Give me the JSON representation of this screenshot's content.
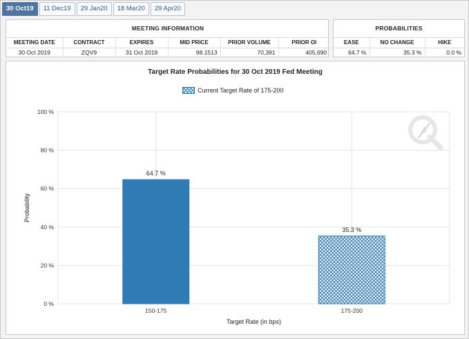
{
  "tabs": [
    {
      "label": "30 Oct19",
      "active": true
    },
    {
      "label": "11 Dec19",
      "active": false
    },
    {
      "label": "29 Jan20",
      "active": false
    },
    {
      "label": "18 Mar20",
      "active": false
    },
    {
      "label": "29 Apr20",
      "active": false
    }
  ],
  "meeting_info": {
    "title": "MEETING INFORMATION",
    "headers": [
      "MEETING DATE",
      "CONTRACT",
      "EXPIRES",
      "MID PRICE",
      "PRIOR VOLUME",
      "PRIOR OI"
    ],
    "row": [
      "30 Oct 2019",
      "ZQV9",
      "31 Oct 2019",
      "98.1513",
      "70,391",
      "405,690"
    ]
  },
  "probabilities": {
    "title": "PROBABILITIES",
    "headers": [
      "EASE",
      "NO CHANGE",
      "HIKE"
    ],
    "row": [
      "64.7 %",
      "35.3 %",
      "0.0 %"
    ]
  },
  "colors": {
    "bar_fill": "#2e7bb6",
    "hatch_stroke": "#2e7bb6",
    "grid": "#e3e3e3",
    "axis_text": "#333333",
    "tab_active": "#4e74a1"
  },
  "chart_data": {
    "type": "bar",
    "title": "Target Rate Probabilities for 30 Oct 2019 Fed Meeting",
    "legend": "Current Target Rate of 175-200",
    "xlabel": "Target Rate (in bps)",
    "ylabel": "Probability",
    "categories": [
      "150-175",
      "175-200"
    ],
    "values": [
      64.7,
      35.3
    ],
    "data_labels": [
      "64.7 %",
      "35.3 %"
    ],
    "hatched": [
      false,
      true
    ],
    "ylim": [
      0,
      100
    ],
    "yticks": [
      0,
      20,
      40,
      60,
      80,
      100
    ],
    "ytick_labels": [
      "0 %",
      "20 %",
      "40 %",
      "60 %",
      "80 %",
      "100 %"
    ],
    "grid": true
  }
}
